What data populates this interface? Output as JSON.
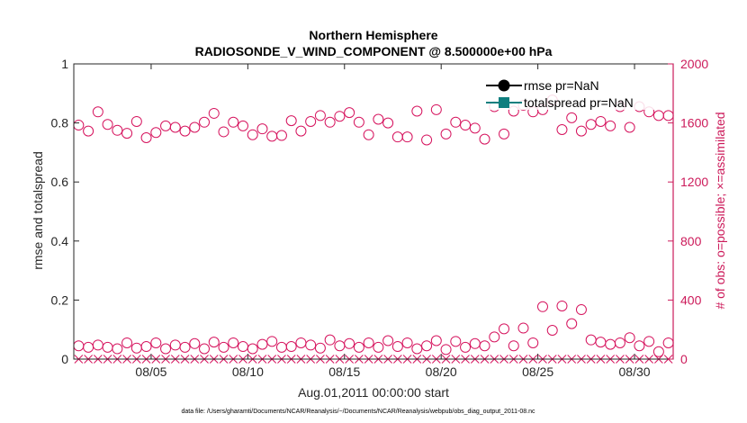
{
  "chart_data": {
    "type": "scatter",
    "title_line1": "Northern Hemisphere",
    "title_line2": "RADIOSONDE_V_WIND_COMPONENT @ 8.500000e+00 hPa",
    "xlabel": "Aug.01,2011 00:00:00 start",
    "ylabel_left": "rmse and totalspread",
    "ylabel_right": "# of obs: o=possible; ×=assimilated",
    "footnote": "data file: /Users/gharamti/Documents/NCAR/Reanalysis/~/Documents/NCAR/Reanalysis/webpub/obs_diag_output_2011-08.nc",
    "xlim": [
      1,
      32
    ],
    "ylim_left": [
      0,
      1
    ],
    "ylim_right": [
      0,
      2000
    ],
    "x_ticks": [
      {
        "value": 5,
        "label": "08/05"
      },
      {
        "value": 10,
        "label": "08/10"
      },
      {
        "value": 15,
        "label": "08/15"
      },
      {
        "value": 20,
        "label": "08/20"
      },
      {
        "value": 25,
        "label": "08/25"
      },
      {
        "value": 30,
        "label": "08/30"
      }
    ],
    "y_ticks_left": [
      {
        "value": 0,
        "label": "0"
      },
      {
        "value": 0.2,
        "label": "0.2"
      },
      {
        "value": 0.4,
        "label": "0.4"
      },
      {
        "value": 0.6,
        "label": "0.6"
      },
      {
        "value": 0.8,
        "label": "0.8"
      },
      {
        "value": 1,
        "label": "1"
      }
    ],
    "y_ticks_right": [
      {
        "value": 0,
        "label": "0"
      },
      {
        "value": 400,
        "label": "400"
      },
      {
        "value": 800,
        "label": "800"
      },
      {
        "value": 1200,
        "label": "1200"
      },
      {
        "value": 1600,
        "label": "1600"
      },
      {
        "value": 2000,
        "label": "2000"
      }
    ],
    "legend": [
      {
        "name": "rmse pr=NaN",
        "color": "#000000",
        "marker": "circle"
      },
      {
        "name": "totalspread pr=NaN",
        "color": "#0f7f7f",
        "marker": "square"
      }
    ],
    "legend_position": "top-right",
    "colors": {
      "right_axis": "#cc1a5a",
      "left_axis": "#000000",
      "possible": "#d6145e",
      "assimilated": "#d6145e"
    },
    "series": [
      {
        "name": "obs possible (upper cluster)",
        "marker": "circle",
        "axis": "right",
        "x": [
          1.25,
          1.75,
          2.25,
          2.75,
          3.25,
          3.75,
          4.25,
          4.75,
          5.25,
          5.75,
          6.25,
          6.75,
          7.25,
          7.75,
          8.25,
          8.75,
          9.25,
          9.75,
          10.25,
          10.75,
          11.25,
          11.75,
          12.25,
          12.75,
          13.25,
          13.75,
          14.25,
          14.75,
          15.25,
          15.75,
          16.25,
          16.75,
          17.25,
          17.75,
          18.25,
          18.75,
          19.25,
          19.75,
          20.25,
          20.75,
          21.25,
          21.75,
          22.25,
          22.75,
          23.25,
          23.75,
          24.25,
          24.75,
          25.25,
          25.75,
          26.25,
          26.75,
          27.25,
          27.75,
          28.25,
          28.75,
          29.25,
          29.75,
          30.25,
          30.75,
          31.25,
          31.75
        ],
        "y": [
          1585,
          1545,
          1675,
          1590,
          1550,
          1530,
          1610,
          1500,
          1535,
          1580,
          1570,
          1545,
          1570,
          1605,
          1665,
          1540,
          1605,
          1580,
          1520,
          1560,
          1510,
          1515,
          1615,
          1545,
          1610,
          1650,
          1605,
          1645,
          1670,
          1605,
          1520,
          1625,
          1600,
          1505,
          1505,
          1680,
          1485,
          1690,
          1525,
          1605,
          1585,
          1565,
          1490,
          1710,
          1525,
          1680,
          1720,
          1675,
          1690,
          1755,
          1555,
          1635,
          1545,
          1590,
          1610,
          1580,
          1710,
          1570,
          1710,
          1675,
          1650,
          1650
        ]
      },
      {
        "name": "obs possible (lower cluster)",
        "marker": "circle",
        "axis": "right",
        "x": [
          1.25,
          1.75,
          2.25,
          2.75,
          3.25,
          3.75,
          4.25,
          4.75,
          5.25,
          5.75,
          6.25,
          6.75,
          7.25,
          7.75,
          8.25,
          8.75,
          9.25,
          9.75,
          10.25,
          10.75,
          11.25,
          11.75,
          12.25,
          12.75,
          13.25,
          13.75,
          14.25,
          14.75,
          15.25,
          15.75,
          16.25,
          16.75,
          17.25,
          17.75,
          18.25,
          18.75,
          19.25,
          19.75,
          20.25,
          20.75,
          21.25,
          21.75,
          22.25,
          22.75,
          23.25,
          23.75,
          24.25,
          24.75,
          25.25,
          25.75,
          26.25,
          26.75,
          27.25,
          27.75,
          28.25,
          28.75,
          29.25,
          29.75,
          30.25,
          30.75,
          31.25,
          31.75
        ],
        "y": [
          90,
          80,
          95,
          80,
          70,
          110,
          75,
          85,
          110,
          70,
          95,
          80,
          105,
          70,
          115,
          80,
          110,
          85,
          70,
          100,
          120,
          80,
          85,
          110,
          95,
          75,
          130,
          90,
          105,
          80,
          110,
          80,
          125,
          85,
          110,
          70,
          90,
          125,
          65,
          120,
          80,
          105,
          90,
          150,
          205,
          90,
          210,
          110,
          355,
          195,
          360,
          240,
          335,
          130,
          115,
          100,
          110,
          145,
          90,
          120,
          50,
          110
        ]
      },
      {
        "name": "obs assimilated",
        "marker": "x",
        "axis": "right",
        "x": [
          1.25,
          1.75,
          2.25,
          2.75,
          3.25,
          3.75,
          4.25,
          4.75,
          5.25,
          5.75,
          6.25,
          6.75,
          7.25,
          7.75,
          8.25,
          8.75,
          9.25,
          9.75,
          10.25,
          10.75,
          11.25,
          11.75,
          12.25,
          12.75,
          13.25,
          13.75,
          14.25,
          14.75,
          15.25,
          15.75,
          16.25,
          16.75,
          17.25,
          17.75,
          18.25,
          18.75,
          19.25,
          19.75,
          20.25,
          20.75,
          21.25,
          21.75,
          22.25,
          22.75,
          23.25,
          23.75,
          24.25,
          24.75,
          25.25,
          25.75,
          26.25,
          26.75,
          27.25,
          27.75,
          28.25,
          28.75,
          29.25,
          29.75,
          30.25,
          30.75,
          31.25,
          31.75
        ],
        "y": [
          0,
          0,
          0,
          0,
          0,
          0,
          0,
          0,
          0,
          0,
          0,
          0,
          0,
          0,
          0,
          0,
          0,
          0,
          0,
          0,
          0,
          0,
          0,
          0,
          0,
          0,
          0,
          0,
          0,
          0,
          0,
          0,
          0,
          0,
          0,
          0,
          0,
          0,
          0,
          0,
          0,
          0,
          0,
          0,
          0,
          0,
          0,
          0,
          0,
          0,
          0,
          0,
          0,
          0,
          0,
          0,
          0,
          0,
          0,
          0,
          0,
          0
        ]
      }
    ]
  }
}
